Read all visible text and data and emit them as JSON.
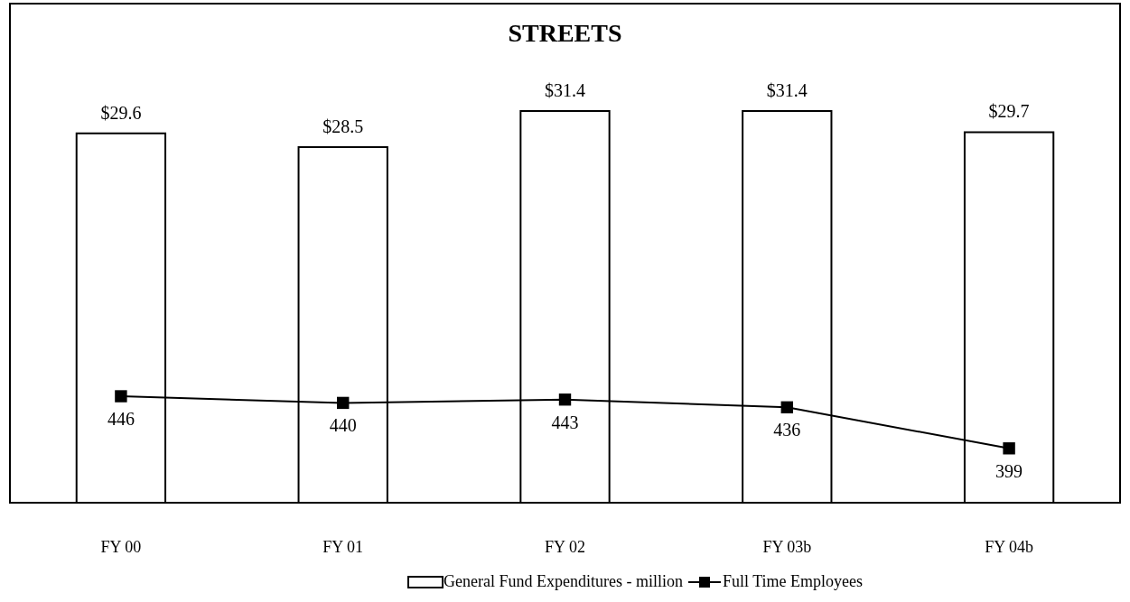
{
  "chart_data": {
    "type": "bar",
    "title": "STREETS",
    "categories": [
      "FY 00",
      "FY 01",
      "FY 02",
      "FY 03b",
      "FY 04b"
    ],
    "series": [
      {
        "name": "General Fund Expenditures - million",
        "color": "#ffffff",
        "values": [
          29.6,
          28.5,
          31.4,
          31.4,
          29.7
        ],
        "value_labels": [
          "$29.6",
          "$28.5",
          "$31.4",
          "$31.4",
          "$29.7"
        ]
      },
      {
        "name": "Full Time Employees",
        "type": "line",
        "axis": "y2",
        "color": "#000000",
        "marker": "square",
        "values": [
          446,
          440,
          443,
          436,
          399
        ],
        "value_labels": [
          "446",
          "440",
          "443",
          "436",
          "399"
        ]
      }
    ],
    "ylim": [
      0,
      40
    ],
    "y2lim": [
      350,
      800
    ],
    "tick_labels": "x",
    "grid": false,
    "legend": "bottom"
  }
}
